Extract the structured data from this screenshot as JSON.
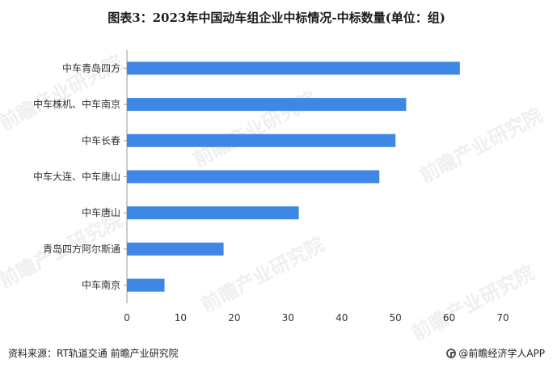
{
  "title": "图表3：2023年中国动车组企业中标情况-中标数量(单位：组)",
  "footer": {
    "source": "资料来源：RT轨道交通 前瞻产业研究院",
    "app": "@前瞻经济学人APP",
    "logo_icon": "qianzhan-logo-icon"
  },
  "watermark": "前瞻产业研究院",
  "colors": {
    "bar": "#3f87e5",
    "axis": "#999999",
    "text": "#333333"
  },
  "chart_data": {
    "type": "bar",
    "orientation": "horizontal",
    "title": "图表3：2023年中国动车组企业中标情况-中标数量(单位：组)",
    "categories": [
      "中车青岛四方",
      "中车株机、中车南京",
      "中车长春",
      "中车大连、中车唐山",
      "中车唐山",
      "青岛四方阿尔斯通",
      "中车南京"
    ],
    "values": [
      62,
      52,
      50,
      47,
      32,
      18,
      7
    ],
    "xlim": [
      0,
      70
    ],
    "xticks": [
      0,
      10,
      20,
      30,
      40,
      50,
      60,
      70
    ],
    "xlabel": "",
    "ylabel": "",
    "grid": false,
    "legend": "none"
  }
}
